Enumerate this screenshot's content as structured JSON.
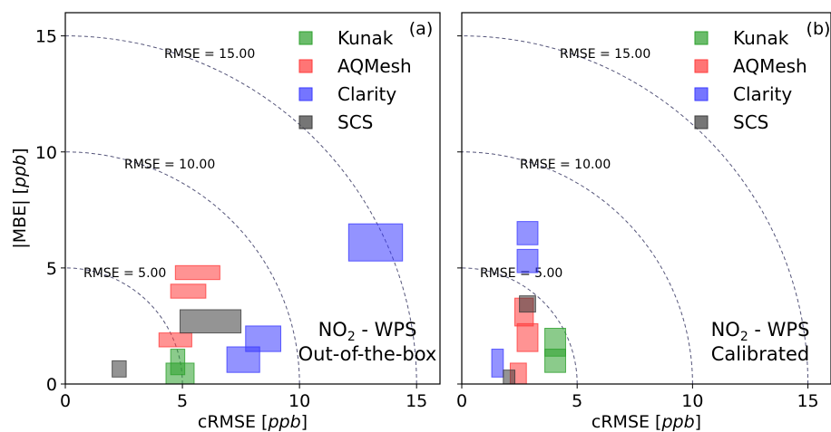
{
  "chart_data": [
    {
      "type": "scatter",
      "panel_label": "(a)",
      "xlabel": "cRMSE [ppb]",
      "ylabel": "|MBE| [ppb]",
      "xlim": [
        0,
        16
      ],
      "ylim": [
        0,
        16
      ],
      "xticks": [
        "0",
        "5",
        "10",
        "15"
      ],
      "yticks": [
        "0",
        "5",
        "10",
        "15"
      ],
      "rmse_contours": [
        {
          "r": 5,
          "label": "RMSE = 5.00"
        },
        {
          "r": 10,
          "label": "RMSE = 10.00"
        },
        {
          "r": 15,
          "label": "RMSE = 15.00"
        }
      ],
      "annotation": [
        "NO2 - WPS",
        "Out-of-the-box"
      ],
      "legend_position": "top-right",
      "series": [
        {
          "name": "Kunak",
          "color": "#2ca02c",
          "boxes": [
            {
              "x": [
                4.5,
                5.1
              ],
              "y": [
                0.4,
                1.5
              ]
            },
            {
              "x": [
                4.3,
                5.5
              ],
              "y": [
                0.0,
                0.9
              ]
            }
          ]
        },
        {
          "name": "AQMesh",
          "color": "#ff3b3b",
          "boxes": [
            {
              "x": [
                4.7,
                6.6
              ],
              "y": [
                4.5,
                5.1
              ]
            },
            {
              "x": [
                4.5,
                6.0
              ],
              "y": [
                3.7,
                4.3
              ]
            },
            {
              "x": [
                4.0,
                5.4
              ],
              "y": [
                1.6,
                2.2
              ]
            }
          ]
        },
        {
          "name": "Clarity",
          "color": "#3a3aff",
          "boxes": [
            {
              "x": [
                12.1,
                14.4
              ],
              "y": [
                5.3,
                6.9
              ]
            },
            {
              "x": [
                7.7,
                9.2
              ],
              "y": [
                1.4,
                2.5
              ]
            },
            {
              "x": [
                6.9,
                8.3
              ],
              "y": [
                0.5,
                1.6
              ]
            }
          ]
        },
        {
          "name": "SCS",
          "color": "#3c3c3c",
          "boxes": [
            {
              "x": [
                4.9,
                7.5
              ],
              "y": [
                2.2,
                3.2
              ]
            },
            {
              "x": [
                2.0,
                2.6
              ],
              "y": [
                0.3,
                1.0
              ]
            }
          ]
        }
      ]
    },
    {
      "type": "scatter",
      "panel_label": "(b)",
      "xlabel": "cRMSE [ppb]",
      "ylabel": "",
      "xlim": [
        0,
        16
      ],
      "ylim": [
        0,
        16
      ],
      "xticks": [
        "0",
        "5",
        "10",
        "15"
      ],
      "yticks": [],
      "rmse_contours": [
        {
          "r": 5,
          "label": "RMSE = 5.00"
        },
        {
          "r": 10,
          "label": "RMSE = 10.00"
        },
        {
          "r": 15,
          "label": "RMSE = 15.00"
        }
      ],
      "annotation": [
        "NO2 - WPS",
        "Calibrated"
      ],
      "legend_position": "top-right",
      "series": [
        {
          "name": "Kunak",
          "color": "#2ca02c",
          "boxes": [
            {
              "x": [
                3.6,
                4.5
              ],
              "y": [
                1.2,
                2.4
              ]
            },
            {
              "x": [
                3.6,
                4.5
              ],
              "y": [
                0.5,
                1.5
              ]
            }
          ]
        },
        {
          "name": "AQMesh",
          "color": "#ff3b3b",
          "boxes": [
            {
              "x": [
                2.3,
                3.1
              ],
              "y": [
                2.5,
                3.7
              ]
            },
            {
              "x": [
                2.4,
                3.3
              ],
              "y": [
                1.4,
                2.6
              ]
            },
            {
              "x": [
                2.1,
                2.8
              ],
              "y": [
                0.0,
                0.9
              ]
            }
          ]
        },
        {
          "name": "Clarity",
          "color": "#3a3aff",
          "boxes": [
            {
              "x": [
                2.4,
                3.3
              ],
              "y": [
                6.0,
                7.0
              ]
            },
            {
              "x": [
                2.4,
                3.3
              ],
              "y": [
                4.8,
                5.8
              ]
            },
            {
              "x": [
                1.3,
                1.8
              ],
              "y": [
                0.3,
                1.5
              ]
            }
          ]
        },
        {
          "name": "SCS",
          "color": "#3c3c3c",
          "boxes": [
            {
              "x": [
                2.5,
                3.2
              ],
              "y": [
                3.1,
                3.8
              ]
            },
            {
              "x": [
                1.8,
                2.3
              ],
              "y": [
                0.0,
                0.6
              ]
            }
          ]
        }
      ]
    }
  ]
}
